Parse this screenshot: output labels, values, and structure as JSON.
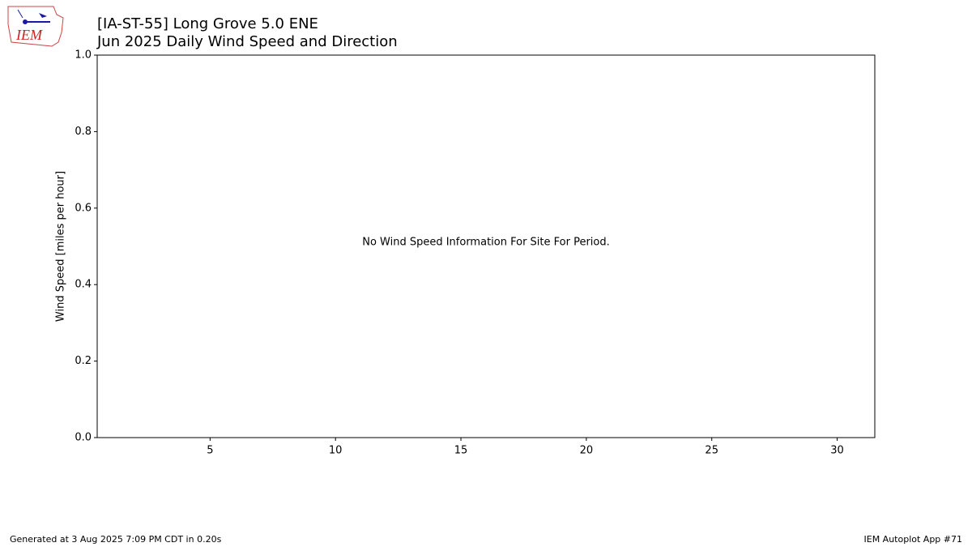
{
  "logo": {
    "text": "IEM"
  },
  "chart_data": {
    "type": "line",
    "title": [
      "[IA-ST-55] Long Grove 5.0 ENE",
      "Jun 2025 Daily Wind Speed and Direction"
    ],
    "ylabel": "Wind Speed [miles per hour]",
    "annotation": "No Wind Speed Information For Site For Period.",
    "x": [],
    "series": [],
    "xlim": [
      0.5,
      31.5
    ],
    "xticks": [
      5,
      10,
      15,
      20,
      25,
      30
    ],
    "ylim": [
      0,
      1
    ],
    "yticks": [
      {
        "value": 0,
        "label": "0.0"
      },
      0.2,
      0.4,
      0.6,
      0.8,
      {
        "value": 1,
        "label": "1.0"
      }
    ],
    "grid": false
  },
  "footer": {
    "left": "Generated at 3 Aug 2025 7:09 PM CDT in 0.20s",
    "right": "IEM Autoplot App #71"
  }
}
